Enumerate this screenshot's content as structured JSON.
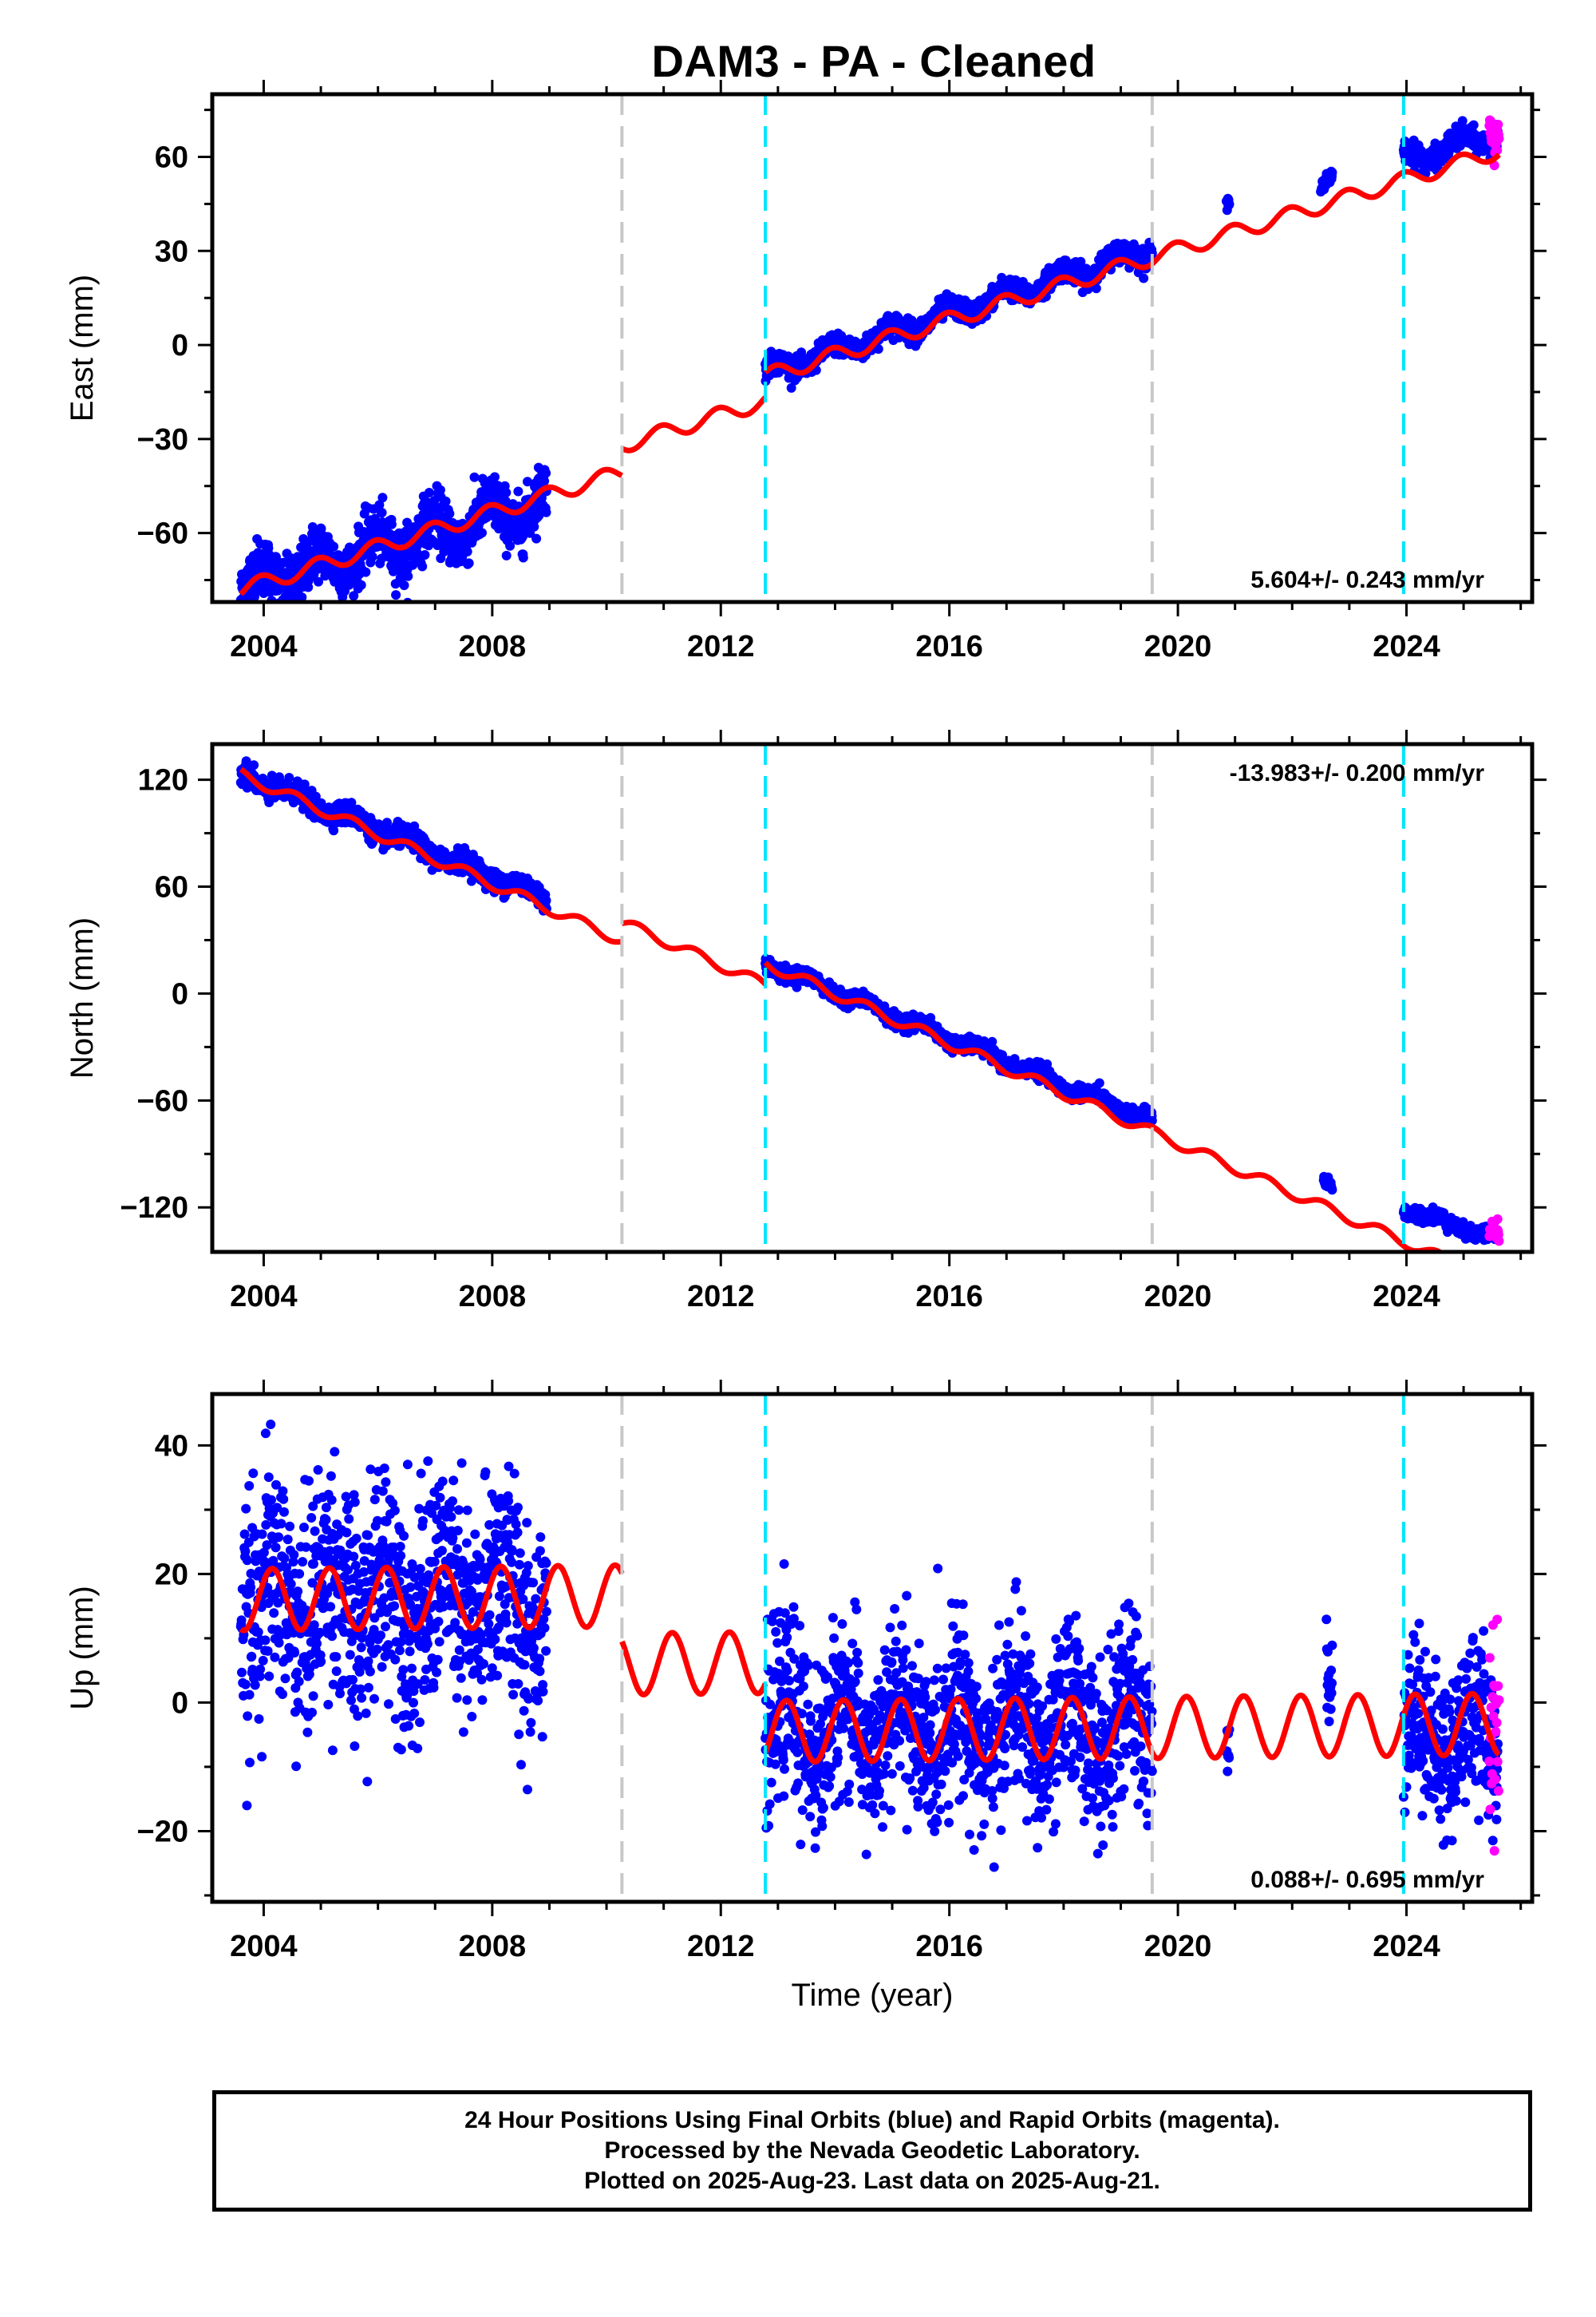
{
  "title": "DAM3  - PA - Cleaned",
  "footer": {
    "line1": "24 Hour Positions Using Final Orbits (blue) and Rapid Orbits (magenta).",
    "line2": "Processed by the Nevada Geodetic Laboratory.",
    "line3": "Plotted on 2025-Aug-23. Last data on 2025-Aug-21."
  },
  "colors": {
    "final_orbits": "#0000ff",
    "rapid_orbits": "#ff00ff",
    "model_fit": "#ff0000",
    "equipment_change": "#c8c8c8",
    "earthquake_step": "#00e5ff"
  },
  "chart_data": [
    {
      "type": "scatter",
      "title": "DAM3  - PA - Cleaned",
      "ylabel": "East (mm)",
      "xlabel": "",
      "xlim": [
        2003.1,
        2026.2
      ],
      "ylim": [
        -82,
        80
      ],
      "xticks": [
        2004,
        2008,
        2012,
        2016,
        2020,
        2024
      ],
      "yticks": [
        -60,
        -30,
        0,
        30,
        60
      ],
      "rate_text": "5.604+/- 0.243 mm/yr",
      "rate_position": "bottom-right",
      "grid": false,
      "vlines_gray": [
        2010.27,
        2019.55
      ],
      "vlines_cyan": [
        2012.78,
        2023.95
      ],
      "data_segments": [
        {
          "start": 2003.6,
          "end": 2008.95,
          "offset": -77,
          "rate": 5.0,
          "noise": 4.5,
          "seasonal": 5.0
        },
        {
          "start": 2012.78,
          "end": 2019.55,
          "offset": -9,
          "rate": 5.9,
          "noise": 1.7,
          "seasonal": 2.5
        },
        {
          "start": 2020.85,
          "end": 2020.9,
          "offset": 43,
          "rate": 5.6,
          "noise": 1.0,
          "seasonal": 2.0
        },
        {
          "start": 2022.5,
          "end": 2022.7,
          "offset": 53,
          "rate": 5.6,
          "noise": 1.0,
          "seasonal": 2.0
        },
        {
          "start": 2023.95,
          "end": 2025.6,
          "offset": 59,
          "rate": 5.0,
          "noise": 1.8,
          "seasonal": 2.5
        }
      ],
      "rapid_segment": {
        "start": 2025.45,
        "end": 2025.62,
        "offset": 66,
        "noise": 3.5
      },
      "model": {
        "rate": 5.604,
        "annual_amplitude": 2.5,
        "annual_phase": 0.3,
        "pieces": [
          {
            "start": 2003.6,
            "end": 2010.27,
            "offset": -78,
            "ref": 2003.6
          },
          {
            "start": 2010.27,
            "end": 2012.78,
            "offset": -32,
            "ref": 2010.27
          },
          {
            "start": 2012.78,
            "end": 2025.62,
            "offset": -10,
            "ref": 2012.78
          }
        ]
      }
    },
    {
      "type": "scatter",
      "ylabel": "North (mm)",
      "xlabel": "",
      "xlim": [
        2003.1,
        2026.2
      ],
      "ylim": [
        -145,
        140
      ],
      "xticks": [
        2004,
        2008,
        2012,
        2016,
        2020,
        2024
      ],
      "yticks": [
        -120,
        -60,
        0,
        60,
        120
      ],
      "rate_text": "-13.983+/- 0.200 mm/yr",
      "rate_position": "top-right",
      "grid": false,
      "vlines_gray": [
        2010.27,
        2019.55
      ],
      "vlines_cyan": [
        2012.78,
        2023.95
      ],
      "data_segments": [
        {
          "start": 2003.6,
          "end": 2008.95,
          "offset": 123,
          "rate": -13.0,
          "noise": 3.0,
          "seasonal": 3.0
        },
        {
          "start": 2012.78,
          "end": 2019.55,
          "offset": 17,
          "rate": -13.1,
          "noise": 2.0,
          "seasonal": 2.5
        },
        {
          "start": 2022.55,
          "end": 2022.7,
          "offset": -107,
          "rate": -14.0,
          "noise": 1.5,
          "seasonal": 2.0
        },
        {
          "start": 2023.95,
          "end": 2025.6,
          "offset": -121,
          "rate": -10.0,
          "noise": 2.0,
          "seasonal": 2.0
        }
      ],
      "rapid_segment": {
        "start": 2025.45,
        "end": 2025.62,
        "offset": -133,
        "noise": 3.0
      },
      "model": {
        "rate": -13.983,
        "annual_amplitude": 3.0,
        "annual_phase": 0.7,
        "pieces": [
          {
            "start": 2003.6,
            "end": 2010.27,
            "offset": 123,
            "ref": 2003.6
          },
          {
            "start": 2010.27,
            "end": 2012.78,
            "offset": 40,
            "ref": 2010.27
          },
          {
            "start": 2012.78,
            "end": 2025.62,
            "offset": 17,
            "ref": 2012.78
          }
        ]
      }
    },
    {
      "type": "scatter",
      "ylabel": "Up (mm)",
      "xlabel": "Time (year)",
      "xlim": [
        2003.1,
        2026.2
      ],
      "ylim": [
        -31,
        48
      ],
      "xticks": [
        2004,
        2008,
        2012,
        2016,
        2020,
        2024
      ],
      "yticks": [
        -20,
        0,
        20,
        40
      ],
      "rate_text": "0.088+/- 0.695 mm/yr",
      "rate_position": "bottom-right",
      "grid": false,
      "vlines_gray": [
        2010.27,
        2019.55
      ],
      "vlines_cyan": [
        2012.78,
        2023.95
      ],
      "data_segments": [
        {
          "start": 2003.6,
          "end": 2008.95,
          "offset": 16,
          "rate": 0.0,
          "noise": 9.0,
          "seasonal": 5.0
        },
        {
          "start": 2012.78,
          "end": 2019.55,
          "offset": -4,
          "rate": 0.0,
          "noise": 6.5,
          "seasonal": 5.0
        },
        {
          "start": 2020.85,
          "end": 2020.9,
          "offset": -7,
          "rate": 0.0,
          "noise": 3.0,
          "seasonal": 1.0
        },
        {
          "start": 2022.6,
          "end": 2022.7,
          "offset": 5,
          "rate": 0.0,
          "noise": 5.0,
          "seasonal": 1.0
        },
        {
          "start": 2023.95,
          "end": 2025.6,
          "offset": -5,
          "rate": 0.0,
          "noise": 6.0,
          "seasonal": 4.0
        }
      ],
      "rapid_segment": {
        "start": 2025.45,
        "end": 2025.62,
        "offset": -3,
        "noise": 8.0
      },
      "model": {
        "rate": 0.088,
        "annual_amplitude": 4.8,
        "annual_phase": 0.1,
        "pieces": [
          {
            "start": 2003.6,
            "end": 2010.27,
            "offset": 16,
            "ref": 2003.6
          },
          {
            "start": 2010.27,
            "end": 2012.78,
            "offset": 6,
            "ref": 2010.27
          },
          {
            "start": 2012.78,
            "end": 2025.62,
            "offset": -4.5,
            "ref": 2012.78
          }
        ]
      }
    }
  ]
}
